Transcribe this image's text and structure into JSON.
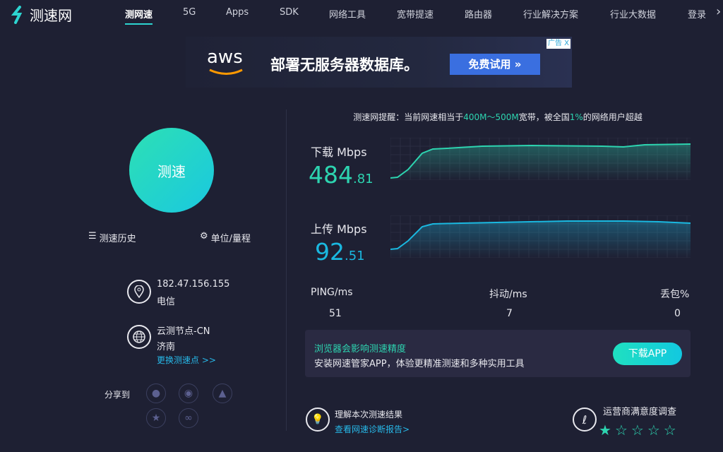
{
  "brand": {
    "name": "测速网"
  },
  "nav": {
    "items": [
      "测网速",
      "5G",
      "Apps",
      "SDK",
      "网络工具",
      "宽带提速",
      "路由器",
      "行业解决方案",
      "行业大数据",
      "登录"
    ],
    "active": "测网速"
  },
  "ad": {
    "logo": "aws",
    "title": "部署无服务器数据库。",
    "button": "免费试用 »",
    "tag": "广告",
    "close": "X"
  },
  "left": {
    "speed_button": "测速",
    "history": "测速历史",
    "settings": "单位/量程",
    "ip": "182.47.156.155",
    "isp": "电信",
    "node": "云测节点-CN",
    "city": "济南",
    "change_node": "更换测速点 >>",
    "share_label": "分享到",
    "share_icons": [
      "wechat",
      "weibo",
      "qq",
      "qzone",
      "link"
    ]
  },
  "tip": {
    "prefix": "测速网提醒：当前网速相当于",
    "range": "400M～500M",
    "mid": "宽带，被全国",
    "percent": "1%",
    "suffix": "的网络用户超越"
  },
  "download": {
    "label": "下载 Mbps",
    "int": "484",
    "dec": ".81",
    "color": "#2dd4b0"
  },
  "upload": {
    "label": "上传 Mbps",
    "int": "92",
    "dec": ".51",
    "color": "#1ab8e0"
  },
  "stats": {
    "ping_label": "PING/ms",
    "ping": "51",
    "jitter_label": "抖动/ms",
    "jitter": "7",
    "loss_label": "丢包%",
    "loss": "0"
  },
  "promo": {
    "title": "浏览器会影响测速精度",
    "text": "安装网速管家APP，体验更精准测速和多种实用工具",
    "button": "下载APP"
  },
  "report": {
    "title": "理解本次测速结果",
    "link": "查看网速诊断报告>"
  },
  "survey": {
    "title": "运营商满意度调查",
    "rating": 1,
    "max": 5
  },
  "colors": {
    "background": "#1e2033",
    "accent": "#2dd4b0",
    "link": "#27b8e8"
  }
}
